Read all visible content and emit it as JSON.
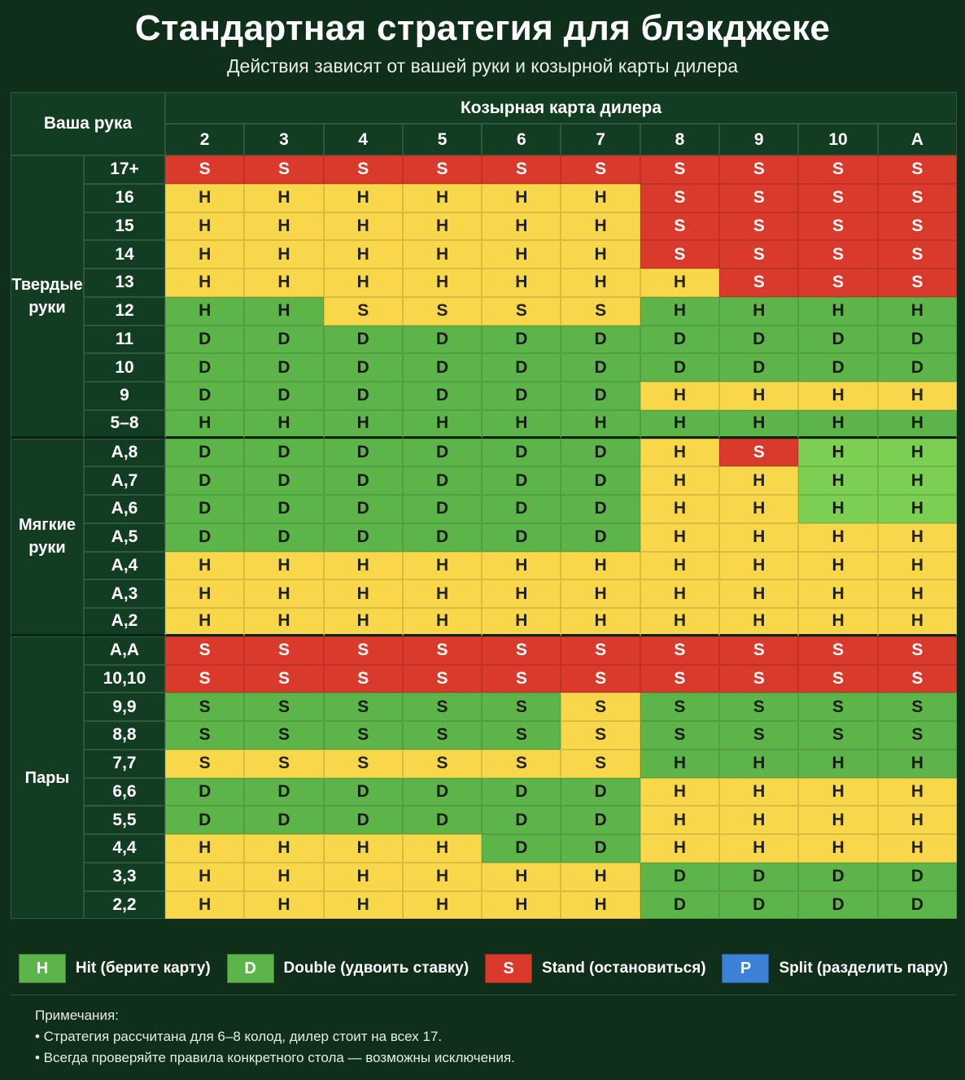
{
  "title": "Стандартная стратегия для блэкджеке",
  "subtitle": "Действия зависят от вашей руки и козырной карты дилера",
  "table": {
    "your_hand_label": "Ваша рука",
    "dealer_label": "Козырная карта дилера",
    "dealer_cards": [
      "2",
      "3",
      "4",
      "5",
      "6",
      "7",
      "8",
      "9",
      "10",
      "A"
    ],
    "groups": [
      {
        "name": "Твердые\nруки",
        "rows": [
          {
            "hand": "17+",
            "actions": [
              "S",
              "S",
              "S",
              "S",
              "S",
              "S",
              "S",
              "S",
              "S",
              "S"
            ]
          },
          {
            "hand": "16",
            "actions": [
              "H",
              "H",
              "H",
              "H",
              "H",
              "H",
              "S",
              "S",
              "S",
              "S"
            ]
          },
          {
            "hand": "15",
            "actions": [
              "H",
              "H",
              "H",
              "H",
              "H",
              "H",
              "S",
              "S",
              "S",
              "S"
            ]
          },
          {
            "hand": "14",
            "actions": [
              "H",
              "H",
              "H",
              "H",
              "H",
              "H",
              "S",
              "S",
              "S",
              "S"
            ]
          },
          {
            "hand": "13",
            "actions": [
              "H",
              "H",
              "H",
              "H",
              "H",
              "H",
              "H",
              "S",
              "S",
              "S"
            ]
          },
          {
            "hand": "12",
            "actions": [
              "H",
              "H",
              "S",
              "S",
              "S",
              "S",
              "H",
              "H",
              "H",
              "H"
            ]
          },
          {
            "hand": "11",
            "actions": [
              "D",
              "D",
              "D",
              "D",
              "D",
              "D",
              "D",
              "D",
              "D",
              "D"
            ]
          },
          {
            "hand": "10",
            "actions": [
              "D",
              "D",
              "D",
              "D",
              "D",
              "D",
              "D",
              "D",
              "D",
              "D"
            ]
          },
          {
            "hand": "9",
            "actions": [
              "D",
              "D",
              "D",
              "D",
              "D",
              "D",
              "H",
              "H",
              "H",
              "H"
            ]
          },
          {
            "hand": "5–8",
            "actions": [
              "H",
              "H",
              "H",
              "H",
              "H",
              "H",
              "H",
              "H",
              "H",
              "H"
            ]
          }
        ]
      },
      {
        "name": "Мягкие\nруки",
        "rows": [
          {
            "hand": "A,8",
            "actions": [
              "D",
              "D",
              "D",
              "D",
              "D",
              "D",
              "H",
              "S",
              "H",
              "H"
            ]
          },
          {
            "hand": "A,7",
            "actions": [
              "D",
              "D",
              "D",
              "D",
              "D",
              "D",
              "H",
              "H",
              "H",
              "H"
            ]
          },
          {
            "hand": "A,6",
            "actions": [
              "D",
              "D",
              "D",
              "D",
              "D",
              "D",
              "H",
              "H",
              "H",
              "H"
            ]
          },
          {
            "hand": "A,5",
            "actions": [
              "D",
              "D",
              "D",
              "D",
              "D",
              "D",
              "H",
              "H",
              "H",
              "H"
            ]
          },
          {
            "hand": "A,4",
            "actions": [
              "H",
              "H",
              "H",
              "H",
              "H",
              "H",
              "H",
              "H",
              "H",
              "H"
            ]
          },
          {
            "hand": "A,3",
            "actions": [
              "H",
              "H",
              "H",
              "H",
              "H",
              "H",
              "H",
              "H",
              "H",
              "H"
            ]
          },
          {
            "hand": "A,2",
            "actions": [
              "H",
              "H",
              "H",
              "H",
              "H",
              "H",
              "H",
              "H",
              "H",
              "H"
            ]
          }
        ]
      },
      {
        "name": "Пары",
        "rows": [
          {
            "hand": "A,A",
            "actions": [
              "S",
              "S",
              "S",
              "S",
              "S",
              "S",
              "S",
              "S",
              "S",
              "S"
            ]
          },
          {
            "hand": "10,10",
            "actions": [
              "S",
              "S",
              "S",
              "S",
              "S",
              "S",
              "S",
              "S",
              "S",
              "S"
            ]
          },
          {
            "hand": "9,9",
            "actions": [
              "S",
              "S",
              "S",
              "S",
              "S",
              "S",
              "S",
              "S",
              "S",
              "S"
            ]
          },
          {
            "hand": "8,8",
            "actions": [
              "S",
              "S",
              "S",
              "S",
              "S",
              "S",
              "S",
              "S",
              "S",
              "S"
            ]
          },
          {
            "hand": "7,7",
            "actions": [
              "S",
              "S",
              "S",
              "S",
              "S",
              "S",
              "H",
              "H",
              "H",
              "H"
            ]
          },
          {
            "hand": "6,6",
            "actions": [
              "D",
              "D",
              "D",
              "D",
              "D",
              "D",
              "H",
              "H",
              "H",
              "H"
            ]
          },
          {
            "hand": "5,5",
            "actions": [
              "D",
              "D",
              "D",
              "D",
              "D",
              "D",
              "H",
              "H",
              "H",
              "H"
            ]
          },
          {
            "hand": "4,4",
            "actions": [
              "H",
              "H",
              "H",
              "H",
              "D",
              "D",
              "H",
              "H",
              "H",
              "H"
            ]
          },
          {
            "hand": "3,3",
            "actions": [
              "H",
              "H",
              "H",
              "H",
              "H",
              "H",
              "D",
              "D",
              "D",
              "D"
            ]
          },
          {
            "hand": "2,2",
            "actions": [
              "H",
              "H",
              "H",
              "H",
              "H",
              "H",
              "D",
              "D",
              "D",
              "D"
            ]
          }
        ]
      }
    ],
    "cell_colors": [
      [
        "R",
        "R",
        "R",
        "R",
        "R",
        "R",
        "R",
        "R",
        "R",
        "R"
      ],
      [
        "Y",
        "Y",
        "Y",
        "Y",
        "Y",
        "Y",
        "R",
        "R",
        "R",
        "R"
      ],
      [
        "Y",
        "Y",
        "Y",
        "Y",
        "Y",
        "Y",
        "R",
        "R",
        "R",
        "R"
      ],
      [
        "Y",
        "Y",
        "Y",
        "Y",
        "Y",
        "Y",
        "R",
        "R",
        "R",
        "R"
      ],
      [
        "Y",
        "Y",
        "Y",
        "Y",
        "Y",
        "Y",
        "Y",
        "R",
        "R",
        "R"
      ],
      [
        "G",
        "G",
        "Y",
        "Y",
        "Y",
        "Y",
        "G",
        "G",
        "G",
        "G"
      ],
      [
        "G",
        "G",
        "G",
        "G",
        "G",
        "G",
        "G",
        "G",
        "G",
        "G"
      ],
      [
        "G",
        "G",
        "G",
        "G",
        "G",
        "G",
        "G",
        "G",
        "G",
        "G"
      ],
      [
        "G",
        "G",
        "G",
        "G",
        "G",
        "G",
        "Y",
        "Y",
        "Y",
        "Y"
      ],
      [
        "G",
        "G",
        "G",
        "G",
        "G",
        "G",
        "G",
        "G",
        "G",
        "G"
      ],
      [
        "G",
        "G",
        "G",
        "G",
        "G",
        "G",
        "Y",
        "R",
        "L",
        "L"
      ],
      [
        "G",
        "G",
        "G",
        "G",
        "G",
        "G",
        "Y",
        "Y",
        "L",
        "L"
      ],
      [
        "G",
        "G",
        "G",
        "G",
        "G",
        "G",
        "Y",
        "Y",
        "L",
        "L"
      ],
      [
        "G",
        "G",
        "G",
        "G",
        "G",
        "G",
        "Y",
        "Y",
        "Y",
        "Y"
      ],
      [
        "Y",
        "Y",
        "Y",
        "Y",
        "Y",
        "Y",
        "Y",
        "Y",
        "Y",
        "Y"
      ],
      [
        "Y",
        "Y",
        "Y",
        "Y",
        "Y",
        "Y",
        "Y",
        "Y",
        "Y",
        "Y"
      ],
      [
        "Y",
        "Y",
        "Y",
        "Y",
        "Y",
        "Y",
        "Y",
        "Y",
        "Y",
        "Y"
      ],
      [
        "R",
        "R",
        "R",
        "R",
        "R",
        "R",
        "R",
        "R",
        "R",
        "R"
      ],
      [
        "R",
        "R",
        "R",
        "R",
        "R",
        "R",
        "R",
        "R",
        "R",
        "R"
      ],
      [
        "G",
        "G",
        "G",
        "G",
        "G",
        "Y",
        "G",
        "G",
        "G",
        "G"
      ],
      [
        "G",
        "G",
        "G",
        "G",
        "G",
        "Y",
        "G",
        "G",
        "G",
        "G"
      ],
      [
        "Y",
        "Y",
        "Y",
        "Y",
        "Y",
        "Y",
        "G",
        "G",
        "G",
        "G"
      ],
      [
        "G",
        "G",
        "G",
        "G",
        "G",
        "G",
        "Y",
        "Y",
        "Y",
        "Y"
      ],
      [
        "G",
        "G",
        "G",
        "G",
        "G",
        "G",
        "Y",
        "Y",
        "Y",
        "Y"
      ],
      [
        "Y",
        "Y",
        "Y",
        "Y",
        "G",
        "G",
        "Y",
        "Y",
        "Y",
        "Y"
      ],
      [
        "Y",
        "Y",
        "Y",
        "Y",
        "Y",
        "Y",
        "G",
        "G",
        "G",
        "G"
      ],
      [
        "Y",
        "Y",
        "Y",
        "Y",
        "Y",
        "Y",
        "G",
        "G",
        "G",
        "G"
      ]
    ]
  },
  "legend": [
    {
      "code": "H",
      "label": "Hit (берите карту)",
      "color": "#5db54a",
      "text_color": "#ffffff"
    },
    {
      "code": "D",
      "label": "Double (удвоить ставку)",
      "color": "#5db54a",
      "text_color": "#ffffff"
    },
    {
      "code": "S",
      "label": "Stand (остановиться)",
      "color": "#d93a2b",
      "text_color": "#ffffff"
    },
    {
      "code": "P",
      "label": "Split (разделить пару)",
      "color": "#3b82d6",
      "text_color": "#ffffff"
    }
  ],
  "notes": {
    "heading": "Примечания:",
    "items": [
      "• Стратегия рассчитана для 6–8 колод, дилер стоит на всех 17.",
      "• Всегда проверяйте правила конкретного стола — возможны исключения."
    ]
  },
  "colors": {
    "background": "#0f2f1a",
    "red": "#d93a2b",
    "yellow": "#f8d84a",
    "green": "#5db54a",
    "light_green": "#7ccf52",
    "blue": "#3b82d6"
  }
}
